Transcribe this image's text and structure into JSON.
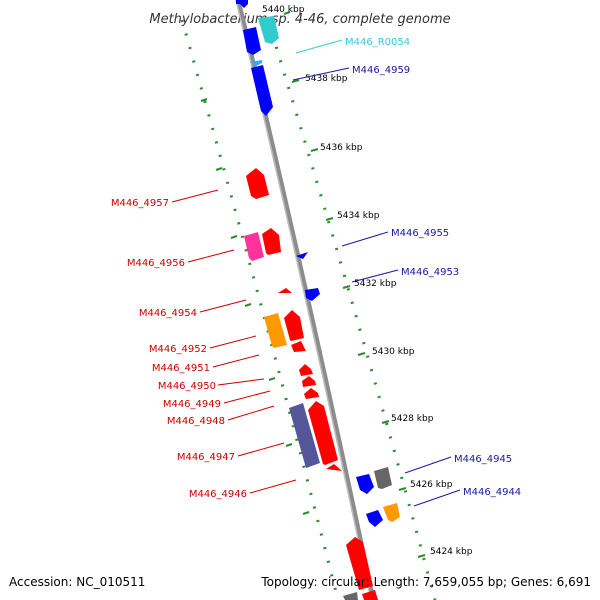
{
  "title": "Methylobacterium sp. 4-46, complete genome",
  "footer": {
    "accession": "Accession: NC_010511",
    "summary": "Topology: circular; Length: 7,659,055 bp; Genes: 6,691"
  },
  "scale_labels": [
    "5440 kbp",
    "5438 kbp",
    "5436 kbp",
    "5434 kbp",
    "5432 kbp",
    "5430 kbp",
    "5428 kbp",
    "5426 kbp",
    "5424 kbp"
  ],
  "gene_labels": [
    {
      "id": "M446_R0054",
      "side": "right",
      "color": "#33ccdd"
    },
    {
      "id": "M446_4959",
      "side": "right",
      "color": "#1a1aa0"
    },
    {
      "id": "M446_4957",
      "side": "left",
      "color": "#cc0000"
    },
    {
      "id": "M446_4956",
      "side": "left",
      "color": "#cc0000"
    },
    {
      "id": "M446_4955",
      "side": "right",
      "color": "#1a1aa0"
    },
    {
      "id": "M446_4953",
      "side": "right",
      "color": "#1a1aa0"
    },
    {
      "id": "M446_4954",
      "side": "left",
      "color": "#cc0000"
    },
    {
      "id": "M446_4952",
      "side": "left",
      "color": "#cc0000"
    },
    {
      "id": "M446_4951",
      "side": "left",
      "color": "#cc0000"
    },
    {
      "id": "M446_4950",
      "side": "left",
      "color": "#cc0000"
    },
    {
      "id": "M446_4949",
      "side": "left",
      "color": "#cc0000"
    },
    {
      "id": "M446_4948",
      "side": "left",
      "color": "#cc0000"
    },
    {
      "id": "M446_4947",
      "side": "left",
      "color": "#cc0000"
    },
    {
      "id": "M446_4945",
      "side": "right",
      "color": "#1a1aa0"
    },
    {
      "id": "M446_4946",
      "side": "left",
      "color": "#cc0000"
    },
    {
      "id": "M446_4944",
      "side": "right",
      "color": "#1a1aa0"
    }
  ],
  "colors": {
    "backbone": "#8c8c8c",
    "dotted_ring": "#2e8b2e",
    "forward_gene": "#ff0000",
    "reverse_gene": "#0000ff",
    "rna_gene": "#33cccc",
    "orange_gene": "#ff9900",
    "magenta_gene": "#ff3399",
    "slate_gene": "#55559a",
    "grey_gene": "#666666"
  }
}
